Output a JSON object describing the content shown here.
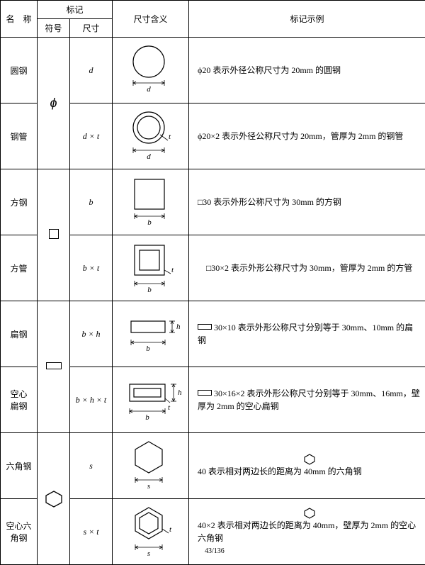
{
  "header": {
    "name": "名　称",
    "mark": "标记",
    "symbol": "符号",
    "dimension": "尺寸",
    "meaning": "尺寸含义",
    "example": "标记示例"
  },
  "groups": [
    {
      "symbol_glyph": "ϕ",
      "rows": [
        {
          "name": "圆钢",
          "dim": "d",
          "shape": "circle",
          "ex": "ϕ20 表示外径公称尺寸为 20mm 的圆钢"
        },
        {
          "name": "钢管",
          "dim": "d × t",
          "shape": "ring",
          "ex": "ϕ20×2 表示外径公称尺寸为 20mm，管厚为 2mm 的钢管"
        }
      ]
    },
    {
      "symbol_glyph": "□",
      "rows": [
        {
          "name": "方钢",
          "dim": "b",
          "shape": "square",
          "ex": "□30 表示外形公称尺寸为 30mm 的方钢"
        },
        {
          "name": "方管",
          "dim": "b × t",
          "shape": "square-tube",
          "ex": "　□30×2 表示外形公称尺寸为 30mm，管厚为 2mm 的方管"
        }
      ]
    },
    {
      "symbol_glyph": "▭",
      "rows": [
        {
          "name": "扁钢",
          "dim": "b × h",
          "shape": "flat",
          "ex": "▭ 30×10 表示外形公称尺寸分别等于 30mm、10mm 的扁钢"
        },
        {
          "name": "空心\n扁钢",
          "dim": "b × h × t",
          "shape": "flat-hollow",
          "ex": "▭ 30×16×2 表示外形公称尺寸分别等于 30mm、16mm，壁厚为 2mm 的空心扁钢"
        }
      ]
    },
    {
      "symbol_glyph": "⬡",
      "rows": [
        {
          "name": "六角钢",
          "dim": "s",
          "shape": "hex",
          "ex": "⬡ 40 表示相对两边长的距离为 40mm 的六角钢"
        },
        {
          "name": "空心六\n角钢",
          "dim": "s × t",
          "shape": "hex-hollow",
          "ex": "⬡ 40×2 表示相对两边长的距离为 40mm，壁厚为 2mm 的空心六角钢"
        }
      ]
    }
  ],
  "footer": "43/136",
  "style": {
    "stroke": "#000000",
    "fill": "#ffffff",
    "table_border": "#000000",
    "font_main": "SimSun",
    "font_math": "Times New Roman"
  }
}
